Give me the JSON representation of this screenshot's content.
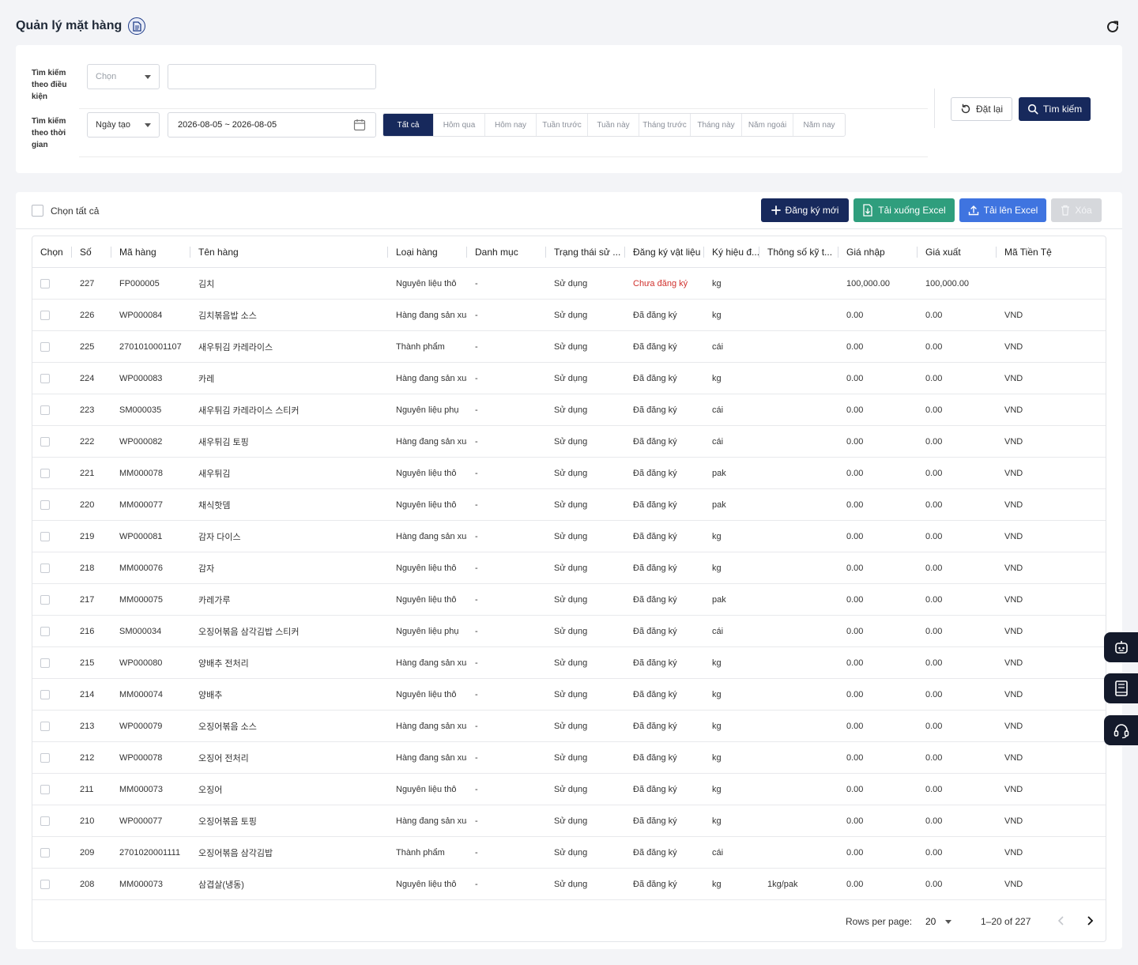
{
  "header": {
    "title": "Quản lý mặt hàng"
  },
  "filters": {
    "condition_label": "Tìm kiếm theo điều kiện",
    "condition_select": "Chọn",
    "condition_value": "",
    "time_label": "Tìm kiếm theo thời gian",
    "time_select": "Ngày tạo",
    "date_range": "2026-08-05 ~ 2026-08-05",
    "periods": [
      "Tất cả",
      "Hôm qua",
      "Hôm nay",
      "Tuần trước",
      "Tuần này",
      "Tháng trước",
      "Tháng này",
      "Năm ngoái",
      "Năm nay"
    ],
    "active_period": "Tất cả",
    "reset_label": "Đặt lại",
    "search_label": "Tìm kiếm"
  },
  "toolbar": {
    "select_all": "Chọn tất cả",
    "new_label": "Đăng ký mới",
    "download_label": "Tải xuống Excel",
    "upload_label": "Tải lên Excel",
    "delete_label": "Xóa"
  },
  "table": {
    "columns": [
      "Chọn",
      "Số",
      "Mã hàng",
      "Tên hàng",
      "Loại hàng",
      "Danh mục",
      "Trạng thái sử ...",
      "Đăng ký vật liệu",
      "Ký hiệu đ...",
      "Thông số kỹ t...",
      "Giá nhập",
      "Giá xuất",
      "Mã Tiền Tệ"
    ],
    "rows": [
      [
        "227",
        "FP000005",
        "김치",
        "Nguyên liệu thô",
        "-",
        "Sử dụng",
        "Chưa đăng ký",
        "kg",
        "",
        "100,000.00",
        "100,000.00",
        ""
      ],
      [
        "226",
        "WP000084",
        "김치볶음밥 소스",
        "Hàng đang sản xuất",
        "-",
        "Sử dụng",
        "Đã đăng ký",
        "kg",
        "",
        "0.00",
        "0.00",
        "VND"
      ],
      [
        "225",
        "2701010001107",
        "새우튀김 카레라이스",
        "Thành phẩm",
        "-",
        "Sử dụng",
        "Đã đăng ký",
        "cái",
        "",
        "0.00",
        "0.00",
        "VND"
      ],
      [
        "224",
        "WP000083",
        "카레",
        "Hàng đang sản xuất",
        "-",
        "Sử dụng",
        "Đã đăng ký",
        "kg",
        "",
        "0.00",
        "0.00",
        "VND"
      ],
      [
        "223",
        "SM000035",
        "새우튀김 카레라이스 스티커",
        "Nguyên liệu phụ",
        "-",
        "Sử dụng",
        "Đã đăng ký",
        "cái",
        "",
        "0.00",
        "0.00",
        "VND"
      ],
      [
        "222",
        "WP000082",
        "새우튀김 토핑",
        "Hàng đang sản xuất",
        "-",
        "Sử dụng",
        "Đã đăng ký",
        "cái",
        "",
        "0.00",
        "0.00",
        "VND"
      ],
      [
        "221",
        "MM000078",
        "새우튀김",
        "Nguyên liệu thô",
        "-",
        "Sử dụng",
        "Đã đăng ký",
        "pak",
        "",
        "0.00",
        "0.00",
        "VND"
      ],
      [
        "220",
        "MM000077",
        "채식핫뎀",
        "Nguyên liệu thô",
        "-",
        "Sử dụng",
        "Đã đăng ký",
        "pak",
        "",
        "0.00",
        "0.00",
        "VND"
      ],
      [
        "219",
        "WP000081",
        "감자 다이스",
        "Hàng đang sản xuất",
        "-",
        "Sử dụng",
        "Đã đăng ký",
        "kg",
        "",
        "0.00",
        "0.00",
        "VND"
      ],
      [
        "218",
        "MM000076",
        "감자",
        "Nguyên liệu thô",
        "-",
        "Sử dụng",
        "Đã đăng ký",
        "kg",
        "",
        "0.00",
        "0.00",
        "VND"
      ],
      [
        "217",
        "MM000075",
        "카레가루",
        "Nguyên liệu thô",
        "-",
        "Sử dụng",
        "Đã đăng ký",
        "pak",
        "",
        "0.00",
        "0.00",
        "VND"
      ],
      [
        "216",
        "SM000034",
        "오징어볶음 삼각김밥 스티커",
        "Nguyên liệu phụ",
        "-",
        "Sử dụng",
        "Đã đăng ký",
        "cái",
        "",
        "0.00",
        "0.00",
        "VND"
      ],
      [
        "215",
        "WP000080",
        "양배추 전처리",
        "Hàng đang sản xuất",
        "-",
        "Sử dụng",
        "Đã đăng ký",
        "kg",
        "",
        "0.00",
        "0.00",
        "VND"
      ],
      [
        "214",
        "MM000074",
        "양배추",
        "Nguyên liệu thô",
        "-",
        "Sử dụng",
        "Đã đăng ký",
        "kg",
        "",
        "0.00",
        "0.00",
        "VND"
      ],
      [
        "213",
        "WP000079",
        "오징어볶음 소스",
        "Hàng đang sản xuất",
        "-",
        "Sử dụng",
        "Đã đăng ký",
        "kg",
        "",
        "0.00",
        "0.00",
        "VND"
      ],
      [
        "212",
        "WP000078",
        "오징어 전처리",
        "Hàng đang sản xuất",
        "-",
        "Sử dụng",
        "Đã đăng ký",
        "kg",
        "",
        "0.00",
        "0.00",
        "VND"
      ],
      [
        "211",
        "MM000073",
        "오징어",
        "Nguyên liệu thô",
        "-",
        "Sử dụng",
        "Đã đăng ký",
        "kg",
        "",
        "0.00",
        "0.00",
        "VND"
      ],
      [
        "210",
        "WP000077",
        "오징어볶음 토핑",
        "Hàng đang sản xuất",
        "-",
        "Sử dụng",
        "Đã đăng ký",
        "kg",
        "",
        "0.00",
        "0.00",
        "VND"
      ],
      [
        "209",
        "2701020001111",
        "오징어볶음 삼각김밥",
        "Thành phẩm",
        "-",
        "Sử dụng",
        "Đã đăng ký",
        "cái",
        "",
        "0.00",
        "0.00",
        "VND"
      ],
      [
        "208",
        "MM000073",
        "삼겹살(냉동)",
        "Nguyên liệu thô",
        "-",
        "Sử dụng",
        "Đã đăng ký",
        "kg",
        "1kg/pak",
        "0.00",
        "0.00",
        "VND"
      ]
    ],
    "unregistered_status": "Chưa đăng ký"
  },
  "pagination": {
    "rows_per_page_label": "Rows per page:",
    "rows_per_page": "20",
    "range": "1–20 of 227"
  },
  "colors": {
    "primary": "#17295c",
    "excel_download": "#2f9e7d",
    "excel_upload": "#3f74e0",
    "disabled": "#d6d8dc",
    "warning_text": "#d0312d"
  },
  "side_buttons": [
    "robot-icon",
    "book-icon",
    "headset-icon"
  ]
}
